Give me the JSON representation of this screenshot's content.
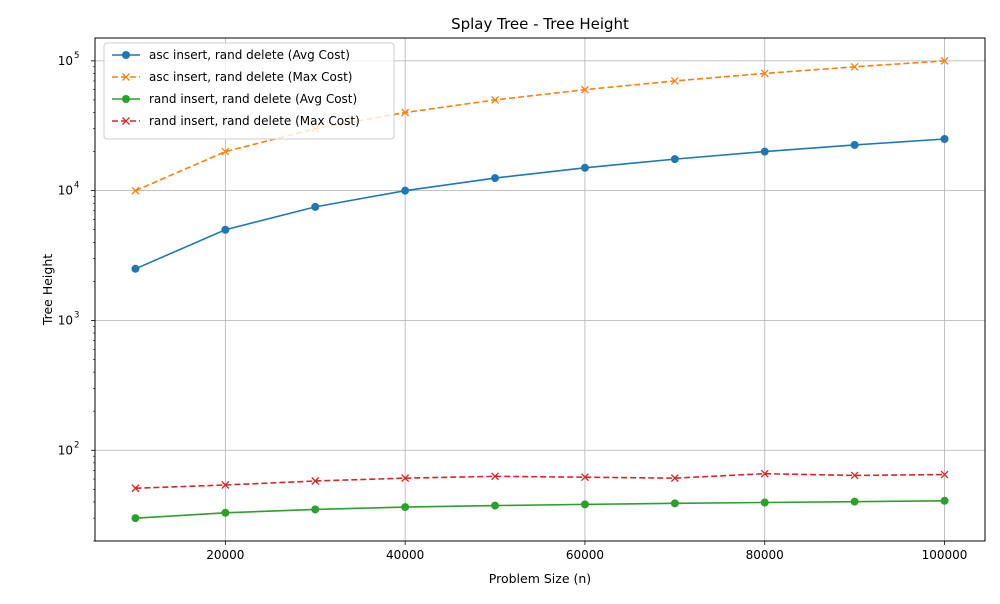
{
  "chart_data": {
    "type": "line",
    "title": "Splay Tree - Tree Height",
    "xlabel": "Problem Size (n)",
    "ylabel": "Tree Height",
    "x": [
      10000,
      20000,
      30000,
      40000,
      50000,
      60000,
      70000,
      80000,
      90000,
      100000
    ],
    "x_ticks": [
      {
        "value": 20000,
        "label": "20000"
      },
      {
        "value": 40000,
        "label": "40000"
      },
      {
        "value": 60000,
        "label": "60000"
      },
      {
        "value": 80000,
        "label": "80000"
      },
      {
        "value": 100000,
        "label": "100000"
      }
    ],
    "y_ticks": [
      {
        "value": 100,
        "base": "10",
        "exp": "2"
      },
      {
        "value": 1000,
        "base": "10",
        "exp": "3"
      },
      {
        "value": 10000,
        "base": "10",
        "exp": "4"
      },
      {
        "value": 100000,
        "base": "10",
        "exp": "5"
      }
    ],
    "xlim": [
      5500,
      104500
    ],
    "ylim": [
      20,
      150000
    ],
    "yscale": "log",
    "grid": true,
    "legend_position": "upper-left",
    "series": [
      {
        "name": "asc insert, rand delete (Avg Cost)",
        "color": "#1f77b4",
        "dashed": false,
        "marker": "circle",
        "values": [
          2500,
          5000,
          7500,
          10000,
          12500,
          15000,
          17500,
          20000,
          22500,
          25000
        ]
      },
      {
        "name": "asc insert, rand delete (Max Cost)",
        "color": "#ff7f0e",
        "dashed": true,
        "marker": "x",
        "values": [
          10000,
          20000,
          30000,
          40000,
          50000,
          60000,
          70000,
          80000,
          90000,
          100000
        ]
      },
      {
        "name": "rand insert, rand delete (Avg Cost)",
        "color": "#2ca02c",
        "dashed": false,
        "marker": "circle",
        "values": [
          30,
          33,
          35,
          36.5,
          37.5,
          38.3,
          39,
          39.6,
          40.2,
          40.8
        ]
      },
      {
        "name": "rand insert, rand delete (Max Cost)",
        "color": "#d62728",
        "dashed": true,
        "marker": "x",
        "values": [
          51,
          54,
          58,
          61,
          63,
          62,
          61,
          66,
          64,
          65
        ]
      }
    ]
  }
}
